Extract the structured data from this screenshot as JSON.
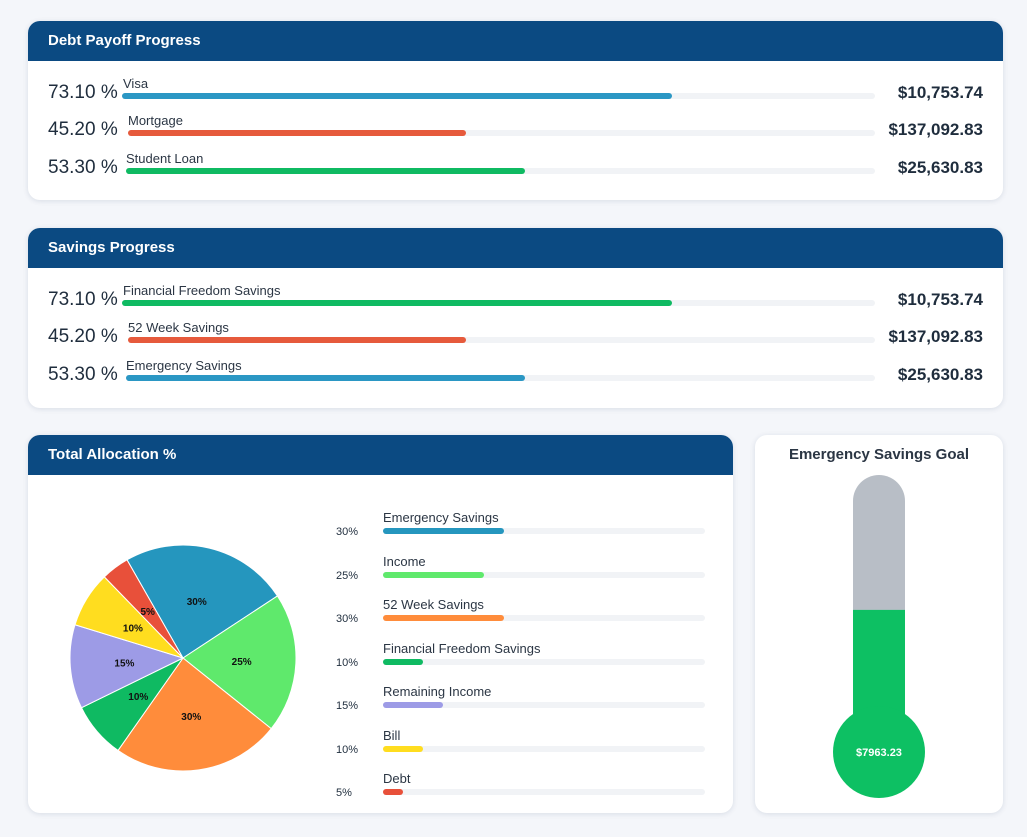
{
  "debt": {
    "title": "Debt Payoff Progress",
    "items": [
      {
        "percent_label": "73.10 %",
        "label": "Visa",
        "amount": "$10,753.74",
        "fraction": 0.731,
        "color": "#2b97c4"
      },
      {
        "percent_label": "45.20 %",
        "label": "Mortgage",
        "amount": "$137,092.83",
        "fraction": 0.452,
        "color": "#e65a3c"
      },
      {
        "percent_label": "53.30 %",
        "label": "Student Loan",
        "amount": "$25,630.83",
        "fraction": 0.533,
        "color": "#0fba62"
      }
    ]
  },
  "savings": {
    "title": "Savings Progress",
    "items": [
      {
        "percent_label": "73.10 %",
        "label": "Financial Freedom Savings",
        "amount": "$10,753.74",
        "fraction": 0.731,
        "color": "#0fba62"
      },
      {
        "percent_label": "45.20 %",
        "label": "52 Week Savings",
        "amount": "$137,092.83",
        "fraction": 0.452,
        "color": "#e65a3c"
      },
      {
        "percent_label": "53.30 %",
        "label": "Emergency Savings",
        "amount": "$25,630.83",
        "fraction": 0.533,
        "color": "#2b97c4"
      }
    ]
  },
  "allocation": {
    "title": "Total Allocation %",
    "legend": [
      {
        "label": "Emergency Savings",
        "percent_label": "30%",
        "value": 30,
        "color": "#2596be"
      },
      {
        "label": "Income",
        "percent_label": "25%",
        "value": 25,
        "color": "#5fe96c"
      },
      {
        "label": "52 Week Savings",
        "percent_label": "30%",
        "value": 30,
        "color": "#ff8c3b"
      },
      {
        "label": "Financial Freedom Savings",
        "percent_label": "10%",
        "value": 10,
        "color": "#0fba62"
      },
      {
        "label": "Remaining Income",
        "percent_label": "15%",
        "value": 15,
        "color": "#9d9be6"
      },
      {
        "label": "Bill",
        "percent_label": "10%",
        "value": 10,
        "color": "#ffdd1f"
      },
      {
        "label": "Debt",
        "percent_label": "5%",
        "value": 5,
        "color": "#e8503a"
      }
    ]
  },
  "chart_data": {
    "type": "pie",
    "title": "Total Allocation %",
    "slices": [
      {
        "label": "Emergency Savings",
        "value": 30,
        "display": "30%",
        "color": "#2596be"
      },
      {
        "label": "Income",
        "value": 25,
        "display": "25%",
        "color": "#5fe96c"
      },
      {
        "label": "52 Week Savings",
        "value": 30,
        "display": "30%",
        "color": "#ff8c3b"
      },
      {
        "label": "Financial Freedom Savings",
        "value": 10,
        "display": "10%",
        "color": "#0fba62"
      },
      {
        "label": "Remaining Income",
        "value": 15,
        "display": "15%",
        "color": "#9d9be6"
      },
      {
        "label": "Bill",
        "value": 10,
        "display": "10%",
        "color": "#ffdd1f"
      },
      {
        "label": "Debt",
        "value": 5,
        "display": "5%",
        "color": "#e8503a"
      }
    ]
  },
  "emergency_goal": {
    "title": "Emergency Savings Goal",
    "value_label": "$7963.23",
    "fill_fraction": 0.34,
    "fill_color": "#0dc063",
    "empty_color": "#b8bec6"
  }
}
